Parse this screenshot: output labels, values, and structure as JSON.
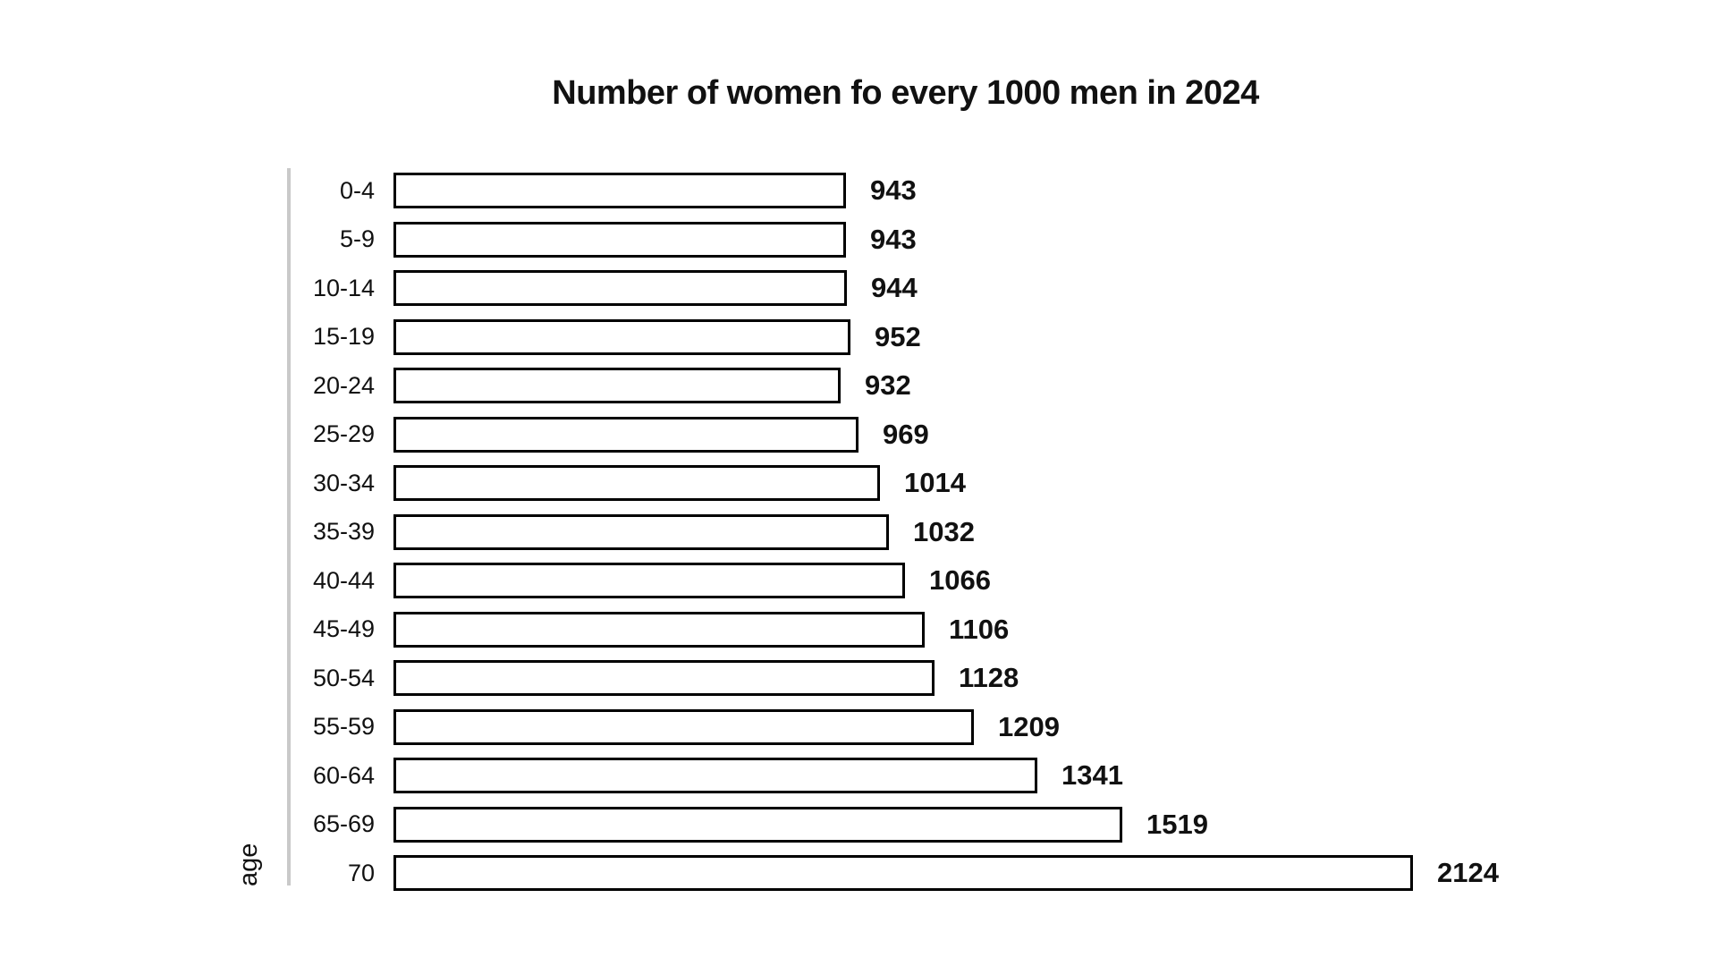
{
  "chart_data": {
    "type": "bar",
    "orientation": "horizontal",
    "title": "Number of women fo every 1000 men in 2024",
    "xlabel": "",
    "ylabel": "age",
    "categories": [
      "0-4",
      "5-9",
      "10-14",
      "15-19",
      "20-24",
      "25-29",
      "30-34",
      "35-39",
      "40-44",
      "45-49",
      "50-54",
      "55-59",
      "60-64",
      "65-69",
      "70"
    ],
    "values": [
      943,
      943,
      944,
      952,
      932,
      969,
      1014,
      1032,
      1066,
      1106,
      1128,
      1209,
      1341,
      1519,
      2124
    ],
    "value_labels": [
      "943",
      "943",
      "944",
      "952",
      "932",
      "969",
      "1014",
      "1032",
      "1066",
      "1106",
      "1128",
      "1209",
      "1341",
      "1519",
      "2124"
    ],
    "value_max": 2124,
    "grid": false,
    "legend": "none",
    "colors": {
      "bar_fill": "#ff8b8b",
      "bar_border": "#000000",
      "axis_line": "#c9c9c9",
      "text": "#111111",
      "background": "#ffffff"
    }
  }
}
